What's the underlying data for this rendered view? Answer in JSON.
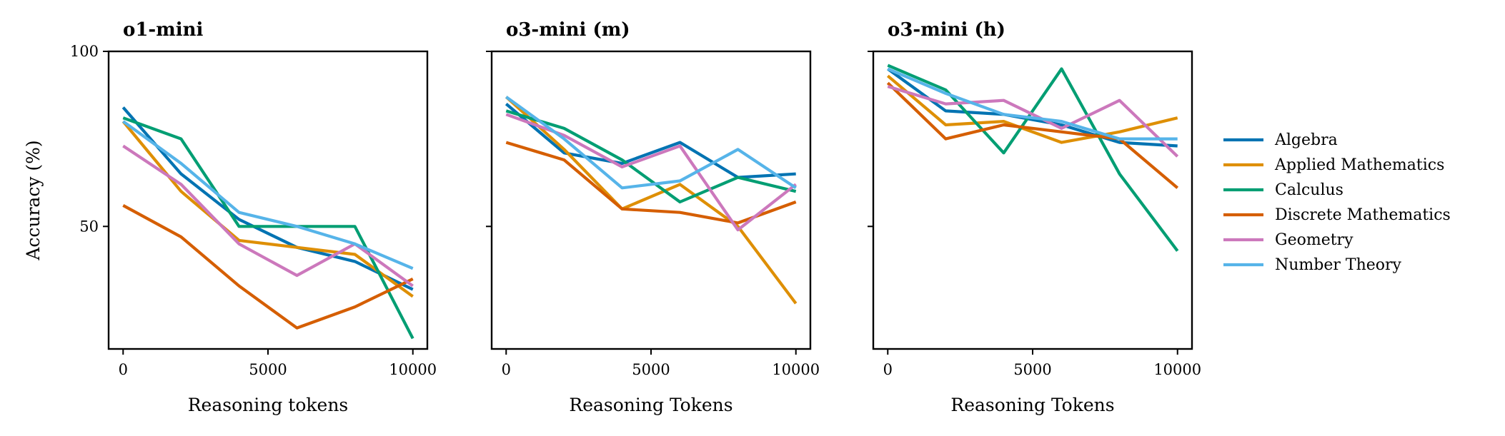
{
  "chart_data": [
    {
      "type": "line",
      "title": "o1-mini",
      "xlabel": "Reasoning tokens",
      "ylabel": "Accuracy (%)",
      "xlim": [
        -500,
        10500
      ],
      "ylim": [
        15,
        100
      ],
      "xticks": [
        0,
        5000,
        10000
      ],
      "yticks": [
        50,
        100
      ],
      "x": [
        0,
        2000,
        4000,
        6000,
        8000,
        10000
      ],
      "series": [
        {
          "name": "Algebra",
          "color": "#0173b2",
          "values": [
            84,
            65,
            52,
            44,
            40,
            32
          ]
        },
        {
          "name": "Applied Mathematics",
          "color": "#de8f05",
          "values": [
            80,
            60,
            46,
            44,
            42,
            30
          ]
        },
        {
          "name": "Calculus",
          "color": "#029e73",
          "values": [
            81,
            75,
            50,
            50,
            50,
            18
          ]
        },
        {
          "name": "Discrete Mathematics",
          "color": "#d55e00",
          "values": [
            56,
            47,
            33,
            21,
            27,
            35
          ]
        },
        {
          "name": "Geometry",
          "color": "#cc78bc",
          "values": [
            73,
            62,
            45,
            36,
            45,
            33
          ]
        },
        {
          "name": "Number Theory",
          "color": "#56b4e9",
          "values": [
            80,
            68,
            54,
            50,
            45,
            38
          ]
        }
      ]
    },
    {
      "type": "line",
      "title": "o3-mini (m)",
      "xlabel": "Reasoning Tokens",
      "ylabel": "",
      "xlim": [
        -500,
        10500
      ],
      "ylim": [
        15,
        100
      ],
      "xticks": [
        0,
        5000,
        10000
      ],
      "yticks": [
        50,
        100
      ],
      "x": [
        0,
        2000,
        4000,
        6000,
        8000,
        10000
      ],
      "series": [
        {
          "name": "Algebra",
          "color": "#0173b2",
          "values": [
            85,
            71,
            68,
            74,
            64,
            65
          ]
        },
        {
          "name": "Applied Mathematics",
          "color": "#de8f05",
          "values": [
            87,
            72,
            55,
            62,
            50,
            28
          ]
        },
        {
          "name": "Calculus",
          "color": "#029e73",
          "values": [
            83,
            78,
            69,
            57,
            64,
            60
          ]
        },
        {
          "name": "Discrete Mathematics",
          "color": "#d55e00",
          "values": [
            74,
            69,
            55,
            54,
            51,
            57
          ]
        },
        {
          "name": "Geometry",
          "color": "#cc78bc",
          "values": [
            82,
            76,
            67,
            73,
            49,
            62
          ]
        },
        {
          "name": "Number Theory",
          "color": "#56b4e9",
          "values": [
            87,
            75,
            61,
            63,
            72,
            61
          ]
        }
      ]
    },
    {
      "type": "line",
      "title": "o3-mini (h)",
      "xlabel": "Reasoning Tokens",
      "ylabel": "",
      "xlim": [
        -500,
        10500
      ],
      "ylim": [
        15,
        100
      ],
      "xticks": [
        0,
        5000,
        10000
      ],
      "yticks": [
        50,
        100
      ],
      "x": [
        0,
        2000,
        4000,
        6000,
        8000,
        10000
      ],
      "series": [
        {
          "name": "Algebra",
          "color": "#0173b2",
          "values": [
            95,
            83,
            82,
            79,
            74,
            73
          ]
        },
        {
          "name": "Applied Mathematics",
          "color": "#de8f05",
          "values": [
            93,
            79,
            80,
            74,
            77,
            81
          ]
        },
        {
          "name": "Calculus",
          "color": "#029e73",
          "values": [
            96,
            89,
            71,
            95,
            65,
            43
          ]
        },
        {
          "name": "Discrete Mathematics",
          "color": "#d55e00",
          "values": [
            91,
            75,
            79,
            77,
            75,
            61
          ]
        },
        {
          "name": "Geometry",
          "color": "#cc78bc",
          "values": [
            90,
            85,
            86,
            78,
            86,
            70
          ]
        },
        {
          "name": "Number Theory",
          "color": "#56b4e9",
          "values": [
            95,
            88,
            82,
            80,
            75,
            75
          ]
        }
      ]
    }
  ],
  "legend": {
    "placement": "right",
    "entries": [
      {
        "label": "Algebra",
        "color": "#0173b2"
      },
      {
        "label": "Applied Mathematics",
        "color": "#de8f05"
      },
      {
        "label": "Calculus",
        "color": "#029e73"
      },
      {
        "label": "Discrete Mathematics",
        "color": "#d55e00"
      },
      {
        "label": "Geometry",
        "color": "#cc78bc"
      },
      {
        "label": "Number Theory",
        "color": "#56b4e9"
      }
    ]
  }
}
